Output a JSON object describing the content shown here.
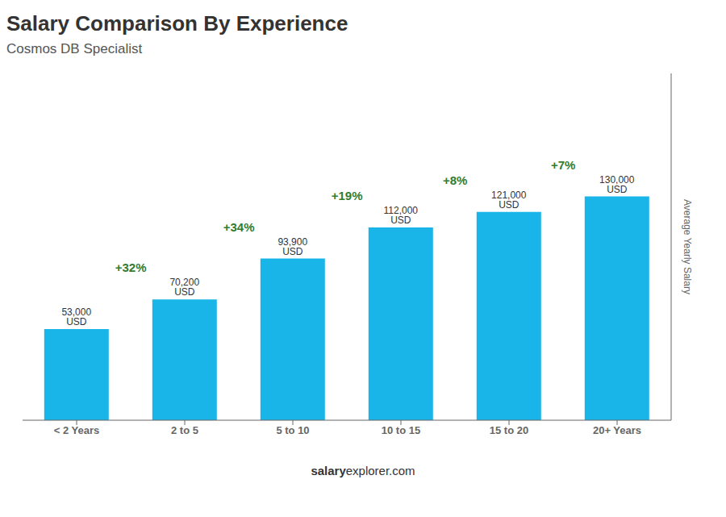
{
  "chart_data": {
    "type": "bar",
    "title": "Salary Comparison By Experience",
    "subtitle": "Cosmos DB Specialist",
    "y_label": "Average Yearly Salary",
    "categories": [
      "< 2 Years",
      "2 to 5",
      "5 to 10",
      "10 to 15",
      "15 to 20",
      "20+ Years"
    ],
    "values": [
      53000,
      70200,
      93900,
      112000,
      121000,
      130000
    ],
    "value_labels": [
      "53,000 USD",
      "70,200 USD",
      "93,900 USD",
      "112,000 USD",
      "121,000 USD",
      "130,000 USD"
    ],
    "data_labels": true,
    "annotations": [
      "+32%",
      "+34%",
      "+19%",
      "+8%",
      "+7%"
    ],
    "watermark": [
      "salary",
      "explorer.com"
    ],
    "color": "#1ab5e8",
    "ylim": [
      0,
      201500
    ],
    "tick_labels": "x",
    "grid": false
  }
}
